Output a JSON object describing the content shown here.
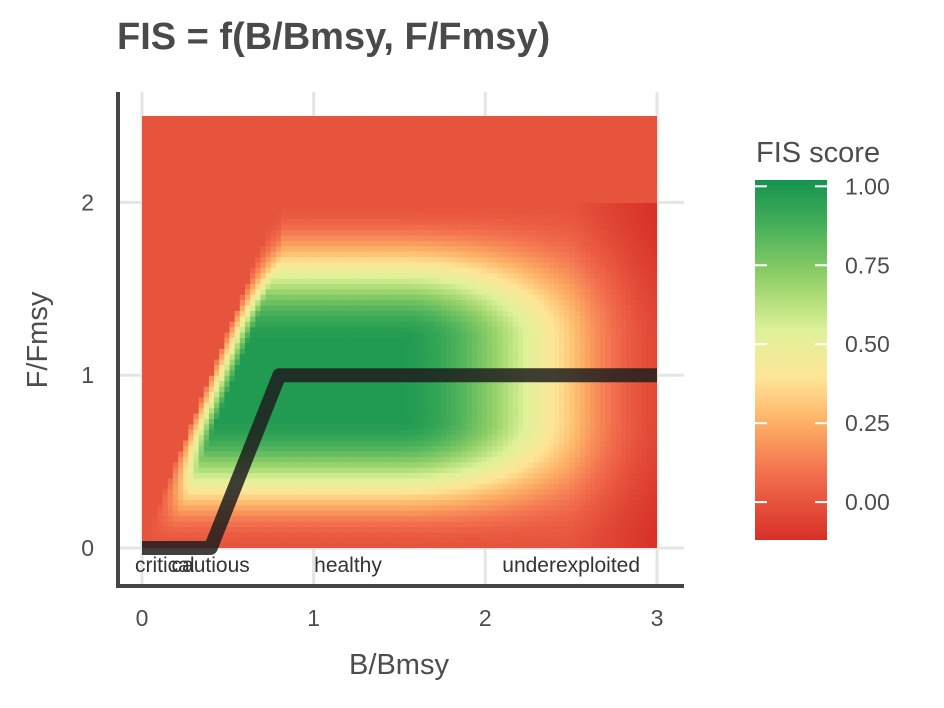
{
  "chart_data": {
    "type": "heatmap",
    "title": "FIS = f(B/Bmsy, F/Fmsy)",
    "xlabel": "B/Bmsy",
    "ylabel": "F/Fmsy",
    "xlim": [
      0,
      3
    ],
    "ylim": [
      0,
      2.5
    ],
    "x_ticks": [
      "0",
      "1",
      "2",
      "3"
    ],
    "y_ticks": [
      "0",
      "1",
      "2"
    ],
    "grid": true,
    "zones": [
      {
        "label": "critical",
        "x": 0
      },
      {
        "label": "cautious",
        "x": 0.4
      },
      {
        "label": "healthy",
        "x": 1.2
      },
      {
        "label": "underexploited",
        "x": 2.5
      }
    ],
    "reference_line": {
      "x": [
        0,
        0.4,
        0.8,
        3
      ],
      "y": [
        0,
        0,
        1,
        1
      ]
    },
    "heat_regions_note_free": true,
    "legend": {
      "title": "FIS score",
      "position": "right",
      "ticks": [
        "0.00",
        "0.25",
        "0.50",
        "0.75",
        "1.00"
      ],
      "range": [
        -0.12,
        1.02
      ]
    },
    "colors": {
      "low": "#d73027",
      "orange": "#f08060",
      "mid_low": "#fdd58a",
      "mid": "#e6f19a",
      "mid_high": "#86cb66",
      "high": "#1a9850",
      "reference_line": "#1f1f1f"
    }
  }
}
